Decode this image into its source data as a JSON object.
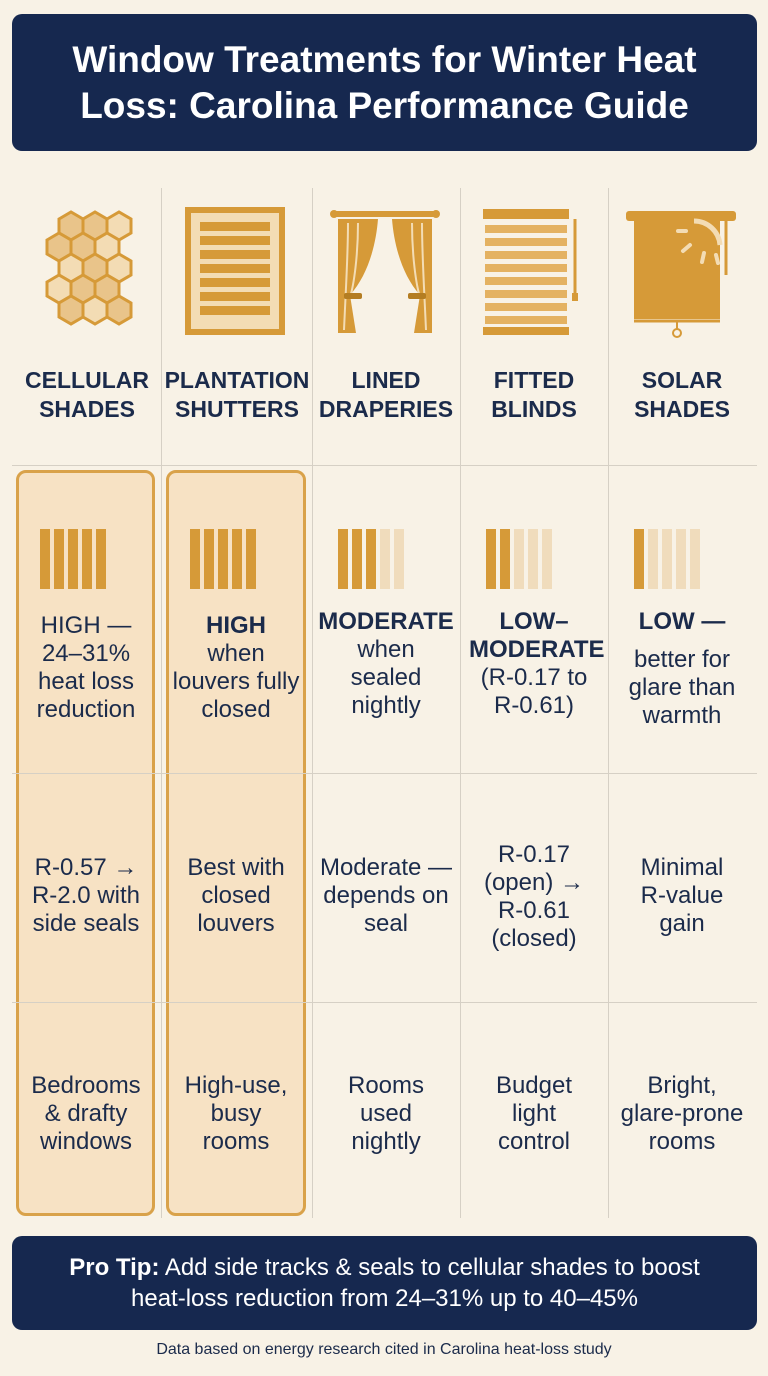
{
  "title": "Window Treatments for Winter Heat Loss: Carolina Performance Guide",
  "columns": [
    {
      "name": "CELLULAR SHADES",
      "icon": "honeycomb-icon",
      "rating_level": 5,
      "eff_head": "HIGH —",
      "eff_detail": "24–31% heat loss reduction",
      "rvalue": "R-0.57 → R-2.0 with side seals",
      "best_for": "Bedrooms & drafty windows",
      "highlight": true
    },
    {
      "name": "PLANTATION SHUTTERS",
      "icon": "shutter-icon",
      "rating_level": 5,
      "eff_head": "HIGH",
      "eff_detail": "when louvers fully closed",
      "rvalue": "Best with closed louvers",
      "best_for": "High-use, busy rooms",
      "highlight": true
    },
    {
      "name": "LINED DRAPERIES",
      "icon": "curtain-icon",
      "rating_level": 3,
      "eff_head": "MODERATE",
      "eff_detail": "when sealed nightly",
      "rvalue": "Moderate — depends on seal",
      "best_for": "Rooms used nightly",
      "highlight": false
    },
    {
      "name": "FITTED BLINDS",
      "icon": "blinds-icon",
      "rating_level": 2,
      "eff_head": "LOW– MODERATE",
      "eff_detail": "(R-0.17 to R-0.61)",
      "rvalue": "R-0.17 (open) → R-0.61 (closed)",
      "best_for": "Budget light control",
      "highlight": false
    },
    {
      "name": "SOLAR SHADES",
      "icon": "solar-shade-icon",
      "rating_level": 1,
      "eff_head": "LOW —",
      "eff_detail": "better for glare than warmth",
      "rvalue": "Minimal R-value gain",
      "best_for": "Bright, glare-prone rooms",
      "highlight": false
    }
  ],
  "tip": {
    "label": "Pro Tip:",
    "text": " Add side tracks & seals to cellular shades to boost heat-loss reduction from 24–31% up to 40–45%"
  },
  "footer": "Data based on energy research cited in Carolina heat-loss study",
  "colors": {
    "navy": "#16284f",
    "gold": "#d69a38",
    "gold_light": "#f0dcbc",
    "highlight_bg": "#f7e2c4",
    "background": "#f8f2e6"
  }
}
